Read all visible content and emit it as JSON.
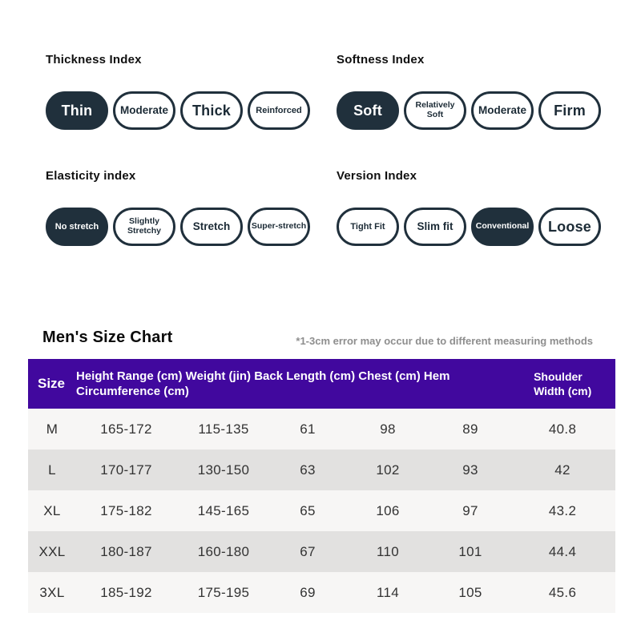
{
  "indices": [
    {
      "title": "Thickness Index",
      "options": [
        {
          "label": "Thin",
          "selected": true
        },
        {
          "label": "Moderate",
          "selected": false
        },
        {
          "label": "Thick",
          "selected": false
        },
        {
          "label": "Reinforced",
          "selected": false
        }
      ]
    },
    {
      "title": "Softness Index",
      "options": [
        {
          "label": "Soft",
          "selected": true
        },
        {
          "label": "Relatively Soft",
          "selected": false
        },
        {
          "label": "Moderate",
          "selected": false
        },
        {
          "label": "Firm",
          "selected": false
        }
      ]
    },
    {
      "title": "Elasticity index",
      "options": [
        {
          "label": "No stretch",
          "selected": true
        },
        {
          "label": "Slightly Stretchy",
          "selected": false
        },
        {
          "label": "Stretch",
          "selected": false
        },
        {
          "label": "Super-stretch",
          "selected": false
        }
      ]
    },
    {
      "title": "Version Index",
      "options": [
        {
          "label": "Tight Fit",
          "selected": false
        },
        {
          "label": "Slim fit",
          "selected": false
        },
        {
          "label": "Conventional",
          "selected": true
        },
        {
          "label": "Loose",
          "selected": false
        }
      ]
    }
  ],
  "size_chart": {
    "title": "Men's Size Chart",
    "note": "*1-3cm error may occur due to different measuring methods",
    "header": {
      "size": "Size",
      "merged": "Height Range (cm) Weight (jin) Back Length (cm) Chest (cm) Hem Circumference (cm)",
      "shoulder": "Shoulder Width (cm)"
    },
    "rows": [
      {
        "size": "M",
        "height": "165-172",
        "weight": "115-135",
        "back_length": "61",
        "chest": "98",
        "hem": "89",
        "shoulder": "40.8"
      },
      {
        "size": "L",
        "height": "170-177",
        "weight": "130-150",
        "back_length": "63",
        "chest": "102",
        "hem": "93",
        "shoulder": "42"
      },
      {
        "size": "XL",
        "height": "175-182",
        "weight": "145-165",
        "back_length": "65",
        "chest": "106",
        "hem": "97",
        "shoulder": "43.2"
      },
      {
        "size": "XXL",
        "height": "180-187",
        "weight": "160-180",
        "back_length": "67",
        "chest": "110",
        "hem": "101",
        "shoulder": "44.4"
      },
      {
        "size": "3XL",
        "height": "185-192",
        "weight": "175-195",
        "back_length": "69",
        "chest": "114",
        "hem": "105",
        "shoulder": "45.6"
      }
    ]
  },
  "colors": {
    "pill_dark": "#20303c",
    "table_header_bg": "#41089e",
    "row_light": "#f7f6f5",
    "row_gray": "#e2e1e0",
    "note_gray": "#8e8e8e"
  }
}
